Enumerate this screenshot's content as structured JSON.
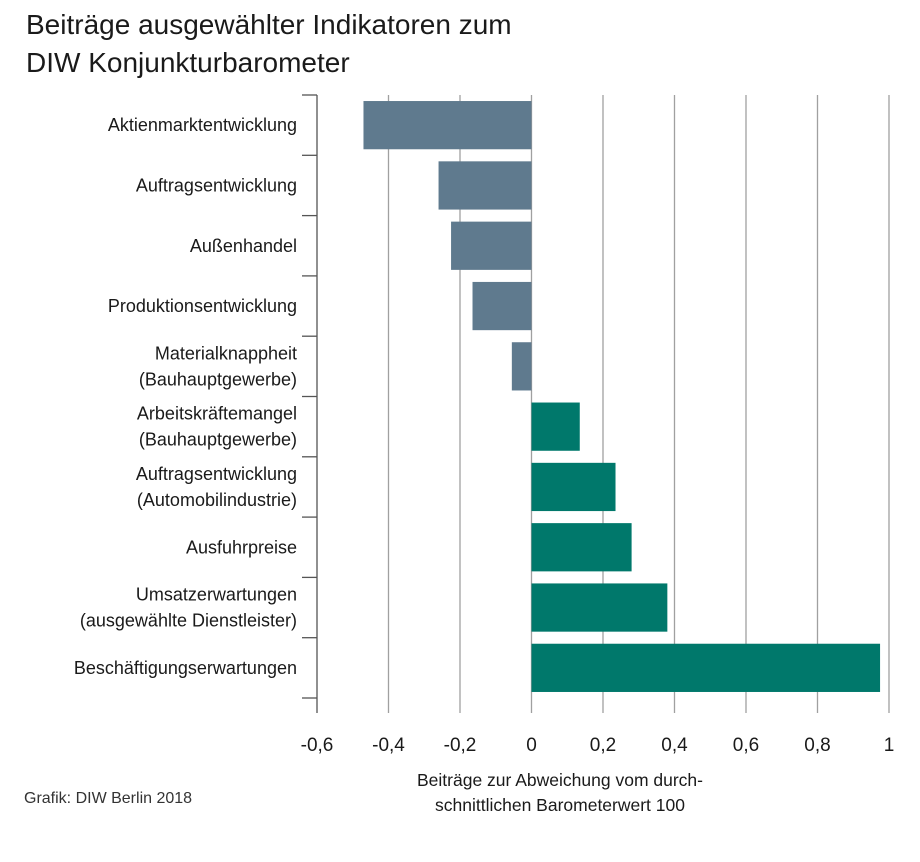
{
  "chart_data": {
    "type": "bar",
    "orientation": "horizontal",
    "title": [
      "Beiträge ausgewählter Indikatoren zum",
      "DIW Konjunkturbarometer"
    ],
    "categories": [
      [
        "Aktienmarktentwicklung"
      ],
      [
        "Auftragsentwicklung"
      ],
      [
        "Außenhandel"
      ],
      [
        "Produktionsentwicklung"
      ],
      [
        "Materialknappheit",
        "(Bauhauptgewerbe)"
      ],
      [
        "Arbeitskräftemangel",
        "(Bauhauptgewerbe)"
      ],
      [
        "Auftragsentwicklung",
        "(Automobilindustrie)"
      ],
      [
        "Ausfuhrpreise"
      ],
      [
        "Umsatzerwartungen",
        "(ausgewählte Dienstleister)"
      ],
      [
        "Beschäftigungserwartungen"
      ]
    ],
    "values": [
      -0.47,
      -0.26,
      -0.225,
      -0.165,
      -0.055,
      0.135,
      0.235,
      0.28,
      0.38,
      0.975
    ],
    "xlim": [
      -0.6,
      1
    ],
    "xticks": [
      -0.6,
      -0.4,
      -0.2,
      0,
      0.2,
      0.4,
      0.6,
      0.8,
      1
    ],
    "xtick_labels": [
      "-0,6",
      "-0,4",
      "-0,2",
      "0",
      "0,2",
      "0,4",
      "0,6",
      "0,8",
      "1"
    ],
    "xlabel": [
      "Beiträge zur Abweichung vom durch-",
      "schnittlichen Barometerwert 100"
    ],
    "grid": "vertical",
    "colors": {
      "negative": "#5f7a8e",
      "positive": "#00786b",
      "grid": "#a0a0a0",
      "axis": "#555555"
    }
  },
  "source": "Grafik: DIW Berlin 2018"
}
